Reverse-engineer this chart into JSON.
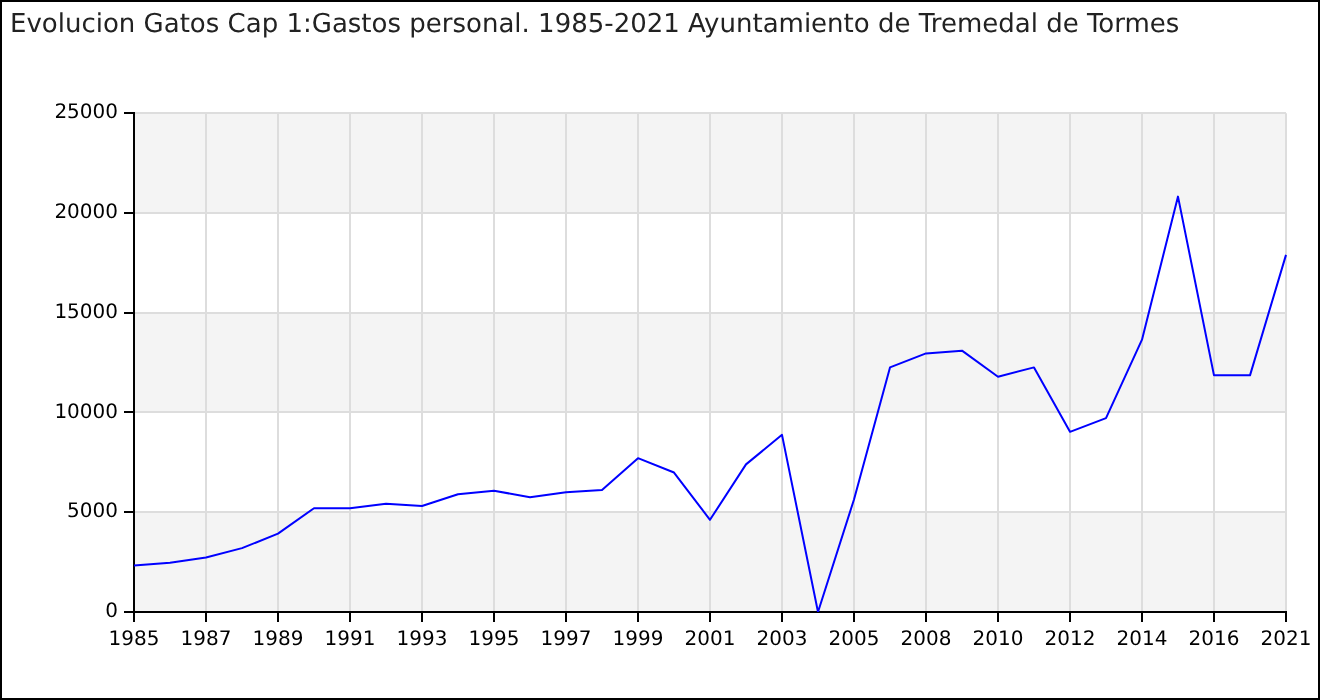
{
  "chart_data": {
    "type": "line",
    "title": "Evolucion Gatos Cap 1:Gastos personal. 1985-2021 Ayuntamiento de Tremedal de Tormes",
    "categories": [
      "1985",
      null,
      "1987",
      null,
      "1989",
      null,
      "1991",
      null,
      "1993",
      null,
      "1995",
      null,
      "1997",
      null,
      "1999",
      null,
      "2001",
      null,
      "2003",
      null,
      "2005",
      null,
      "2008",
      null,
      "2010",
      null,
      "2012",
      null,
      "2014",
      null,
      "2016",
      null,
      "2021"
    ],
    "series": [
      {
        "color": "#0000ff",
        "values": [
          2330,
          2470,
          2730,
          3200,
          3930,
          5200,
          5200,
          5420,
          5310,
          5900,
          6080,
          5750,
          6000,
          6110,
          7710,
          6990,
          4620,
          7400,
          8880,
          0,
          5640,
          12260,
          12960,
          13100,
          11790,
          12260,
          9030,
          9720,
          13650,
          20820,
          11860,
          11860,
          17900
        ]
      }
    ],
    "ylim": [
      0,
      25000
    ],
    "yticks": [
      0,
      5000,
      10000,
      15000,
      20000,
      25000
    ],
    "grid": true,
    "legend": false,
    "marker": "none",
    "line_style": "solid"
  }
}
